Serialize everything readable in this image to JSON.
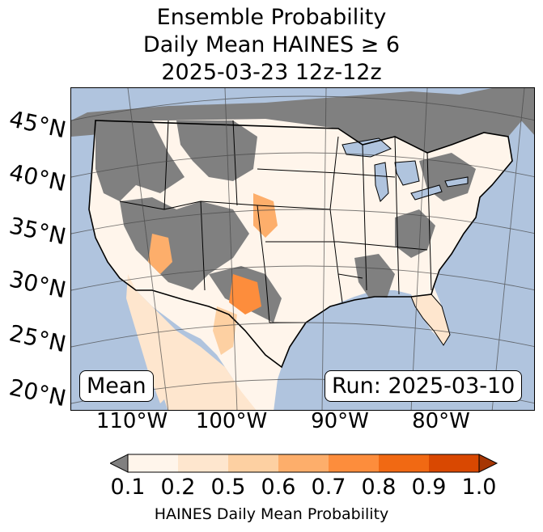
{
  "title": {
    "line1": "Ensemble Probability",
    "line2": "Daily Mean HAINES ≥ 6",
    "line3": "2025-03-23 12z-12z"
  },
  "map": {
    "ocean_color": "#b0c4de",
    "no_data_color": "#808080",
    "lat_labels": [
      "45°N",
      "40°N",
      "35°N",
      "30°N",
      "25°N",
      "20°N"
    ],
    "lon_labels": [
      "110°W",
      "100°W",
      "90°W",
      "80°W"
    ],
    "mean_label": "Mean",
    "run_label": "Run: 2025-03-10"
  },
  "colorbar": {
    "label": "HAINES Daily Mean Probability",
    "ticks": [
      "0.1",
      "0.2",
      "0.5",
      "0.6",
      "0.7",
      "0.8",
      "0.9",
      "1.0"
    ],
    "under_color": "#808080",
    "colors": [
      "#fff5eb",
      "#fee6ce",
      "#fdd0a2",
      "#fdae6b",
      "#fd8d3c",
      "#f16913",
      "#d94801"
    ],
    "over_color": "#a63603"
  }
}
